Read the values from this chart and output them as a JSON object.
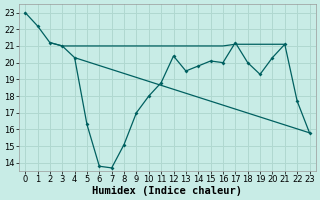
{
  "background_color": "#c8ece6",
  "grid_color": "#b0d8d0",
  "line_color": "#006060",
  "xlabel": "Humidex (Indice chaleur)",
  "xlabel_fontsize": 7.5,
  "tick_fontsize": 6,
  "xlim": [
    -0.5,
    23.5
  ],
  "ylim": [
    13.5,
    23.5
  ],
  "yticks": [
    14,
    15,
    16,
    17,
    18,
    19,
    20,
    21,
    22,
    23
  ],
  "xticks": [
    0,
    1,
    2,
    3,
    4,
    5,
    6,
    7,
    8,
    9,
    10,
    11,
    12,
    13,
    14,
    15,
    16,
    17,
    18,
    19,
    20,
    21,
    22,
    23
  ],
  "line1_x": [
    0,
    1,
    2,
    3,
    4,
    5,
    6,
    7,
    8,
    9,
    10,
    11,
    12,
    13,
    14,
    15,
    16,
    17,
    18,
    19,
    20,
    21,
    22,
    23
  ],
  "line1_y": [
    23.0,
    22.2,
    21.2,
    21.0,
    20.3,
    16.3,
    13.8,
    13.7,
    15.1,
    17.0,
    18.0,
    18.8,
    20.4,
    19.5,
    19.8,
    20.1,
    20.0,
    21.2,
    20.0,
    19.3,
    20.3,
    21.1,
    17.7,
    15.8
  ],
  "line2_x": [
    2,
    3,
    4,
    5,
    6,
    7,
    8,
    9,
    10,
    11,
    12,
    13,
    14,
    15,
    16,
    17,
    18,
    19,
    20,
    21
  ],
  "line2_y": [
    21.2,
    21.0,
    21.0,
    21.0,
    21.0,
    21.0,
    21.0,
    21.0,
    21.0,
    21.0,
    21.0,
    21.0,
    21.0,
    21.0,
    21.0,
    21.1,
    21.1,
    21.1,
    21.1,
    21.1
  ],
  "line3_x": [
    4,
    23
  ],
  "line3_y": [
    20.3,
    15.8
  ]
}
